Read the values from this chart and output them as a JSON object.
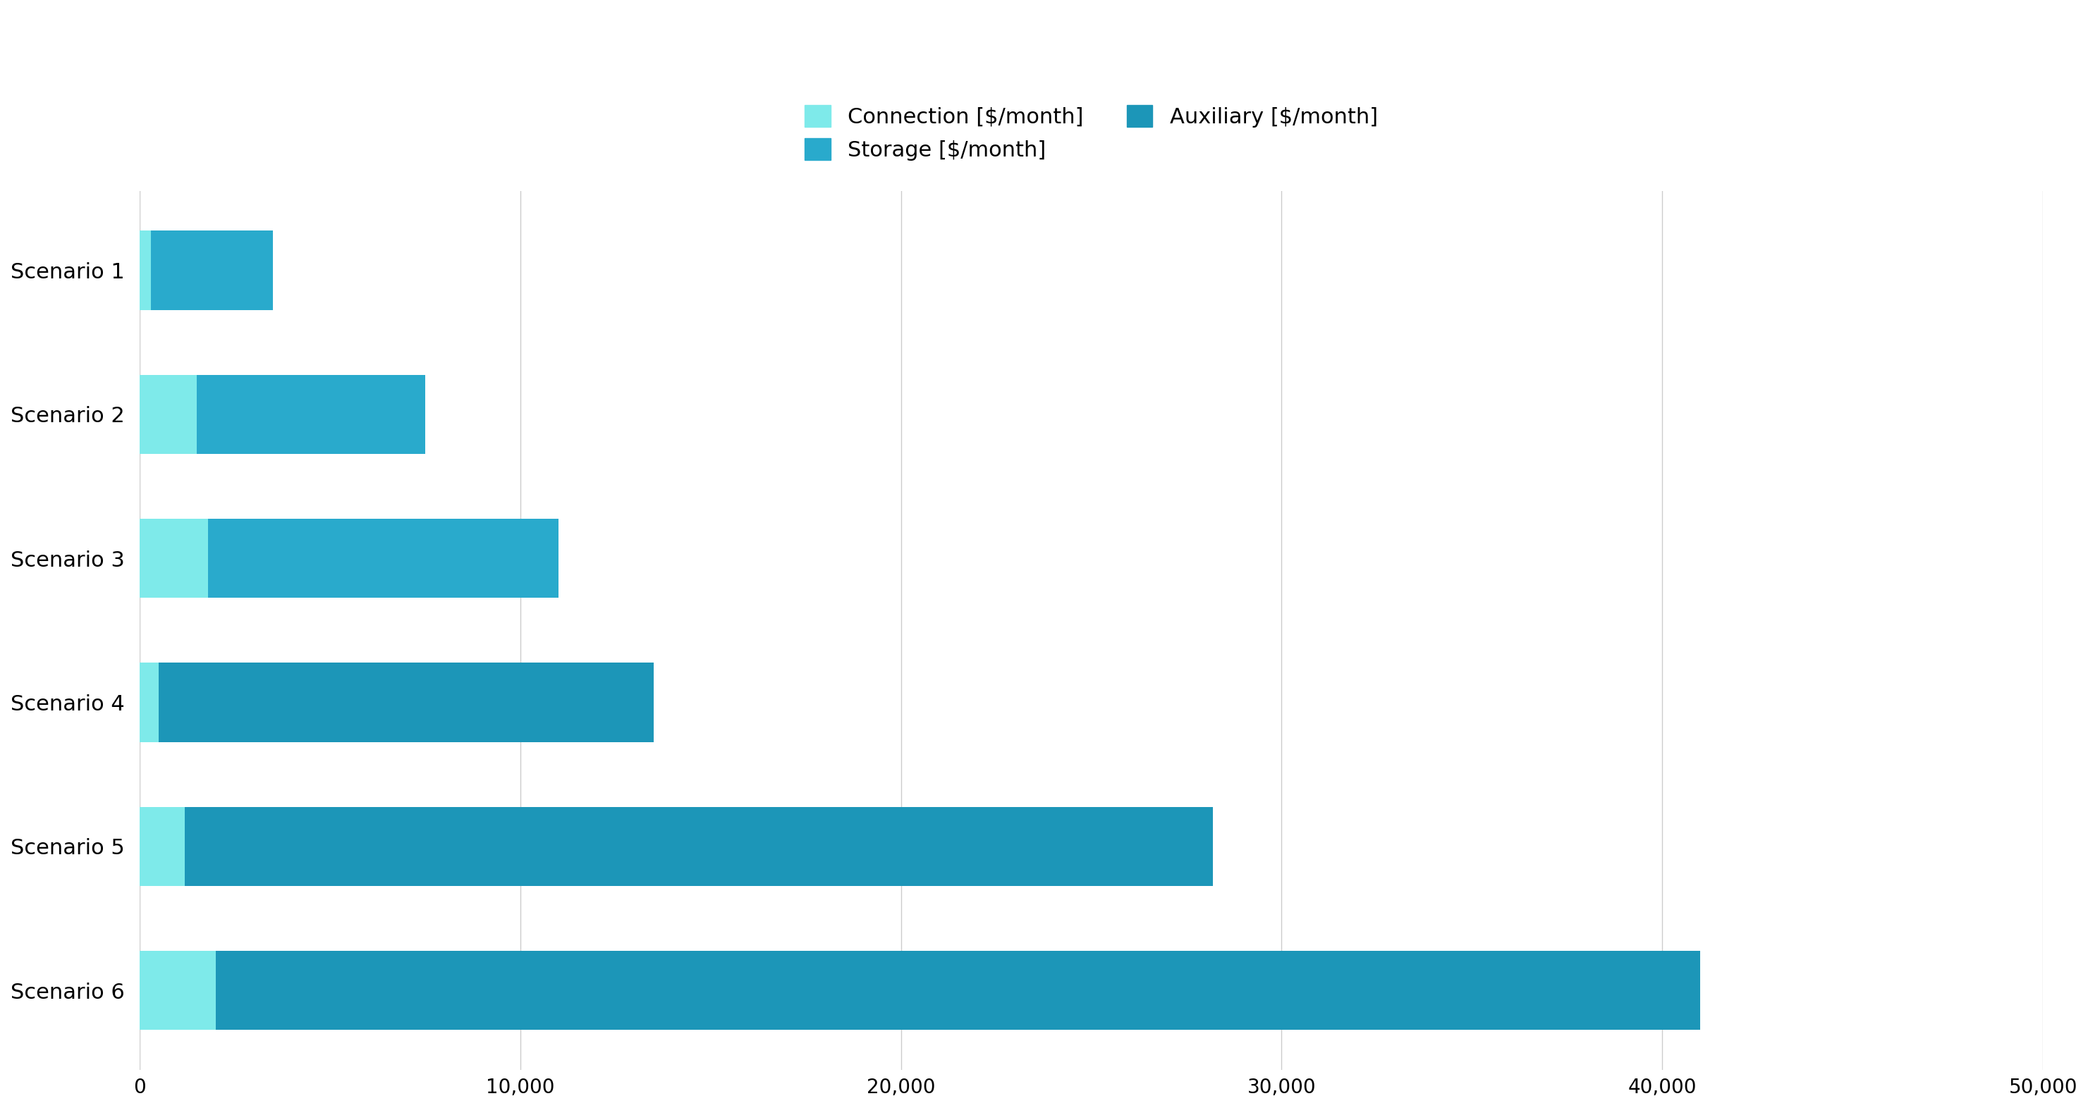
{
  "categories": [
    "Scenario 1",
    "Scenario 2",
    "Scenario 3",
    "Scenario 4",
    "Scenario 5",
    "Scenario 6"
  ],
  "connection": [
    300,
    1500,
    1800,
    500,
    1200,
    2000
  ],
  "storage": [
    3200,
    6000,
    9200,
    0,
    0,
    0
  ],
  "auxiliary": [
    0,
    0,
    0,
    13000,
    27000,
    39000
  ],
  "colors": {
    "connection": "#7EEAEA",
    "storage": "#29AACC",
    "auxiliary": "#1C96B8"
  },
  "legend_labels": [
    "Connection [$/month]",
    "Storage [$/month]",
    "Auxiliary [$/month]"
  ],
  "xlim": [
    0,
    50000
  ],
  "xticks": [
    0,
    10000,
    20000,
    30000,
    40000,
    50000
  ],
  "xticklabels": [
    "0",
    "10,000",
    "20,000",
    "30,000",
    "40,000",
    "50,000"
  ],
  "bar_height": 0.55,
  "background_color": "#ffffff",
  "grid_color": "#cccccc",
  "label_fontsize": 22,
  "tick_fontsize": 20,
  "legend_fontsize": 22
}
